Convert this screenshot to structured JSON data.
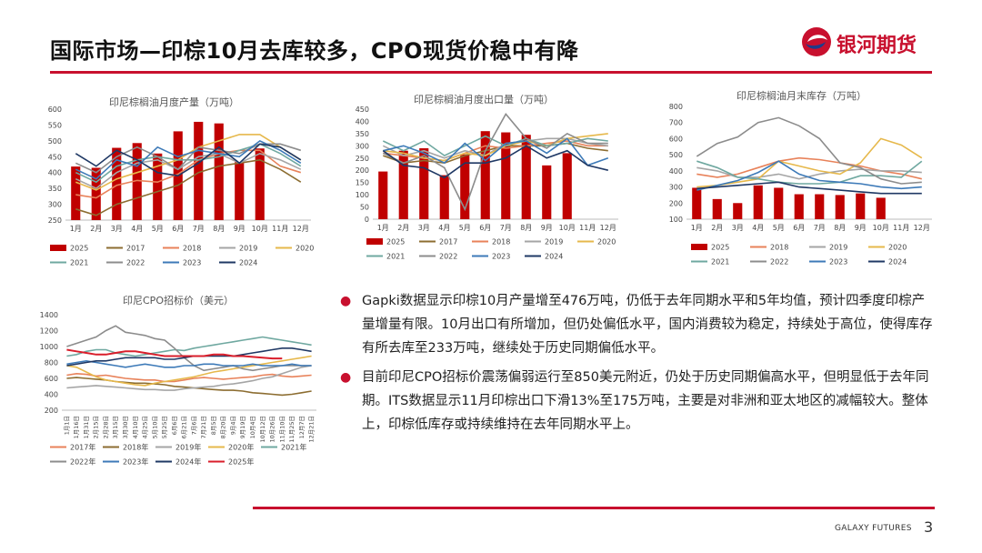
{
  "slide": {
    "title": "国际市场—印棕10月去库较多，CPO现货价稳中有降",
    "logo_text": "银河期货",
    "footer_brand": "GALAXY FUTURES",
    "page_number": "3",
    "colors": {
      "accent": "#c8102e"
    }
  },
  "bullets": [
    "Gapki数据显示印棕10月产量增至476万吨，仍低于去年同期水平和5年均值，预计四季度印棕产量增量有限。10月出口有所增加，但仍处偏低水平，国内消费较为稳定，持续处于高位，使得库存有所去库至233万吨，继续处于历史同期偏低水平。",
    "目前印尼CPO招标价震荡偏弱运行至850美元附近，仍处于历史同期偏高水平，但明显低于去年同期。ITS数据显示11月印棕出口下滑13%至175万吨，主要是对非洲和亚太地区的减幅较大。整体上，印棕低库存或持续维持在去年同期水平上。"
  ],
  "chart_data": [
    {
      "id": "production",
      "type": "bar+line",
      "title": "印尼棕榈油月度产量（万吨）",
      "categories": [
        "1月",
        "2月",
        "3月",
        "4月",
        "5月",
        "6月",
        "7月",
        "8月",
        "9月",
        "10月",
        "11月",
        "12月"
      ],
      "ylim": [
        250,
        600
      ],
      "yticks": [
        250,
        300,
        350,
        400,
        450,
        500,
        550,
        600
      ],
      "bar_series": {
        "name": "2025",
        "color": "#c00000",
        "values": [
          419,
          415,
          478,
          493,
          460,
          530,
          560,
          555,
          433,
          476,
          null,
          null
        ]
      },
      "line_series": [
        {
          "name": "2017",
          "color": "#8c6d31",
          "values": [
            285,
            265,
            300,
            320,
            340,
            360,
            400,
            420,
            430,
            440,
            410,
            370
          ]
        },
        {
          "name": "2018",
          "color": "#e8825a",
          "values": [
            330,
            320,
            360,
            375,
            370,
            395,
            440,
            460,
            470,
            470,
            420,
            400
          ]
        },
        {
          "name": "2019",
          "color": "#a5a5a5",
          "values": [
            380,
            350,
            400,
            430,
            440,
            410,
            450,
            460,
            430,
            460,
            440,
            410
          ]
        },
        {
          "name": "2020",
          "color": "#e6b84b",
          "values": [
            370,
            345,
            380,
            400,
            420,
            440,
            480,
            500,
            520,
            520,
            480,
            440
          ]
        },
        {
          "name": "2021",
          "color": "#6fa8a0",
          "values": [
            400,
            370,
            420,
            440,
            450,
            440,
            440,
            450,
            470,
            490,
            460,
            420
          ]
        },
        {
          "name": "2022",
          "color": "#8c8c8c",
          "values": [
            430,
            400,
            450,
            480,
            450,
            410,
            480,
            470,
            460,
            490,
            490,
            470
          ]
        },
        {
          "name": "2023",
          "color": "#3d7ab8",
          "values": [
            410,
            380,
            440,
            420,
            480,
            450,
            470,
            460,
            450,
            500,
            470,
            430
          ]
        },
        {
          "name": "2024",
          "color": "#1f3864",
          "values": [
            460,
            420,
            470,
            440,
            400,
            390,
            430,
            480,
            430,
            490,
            480,
            440
          ]
        }
      ]
    },
    {
      "id": "exports",
      "type": "bar+line",
      "title": "印尼棕榈油月度出口量（万吨）",
      "categories": [
        "1月",
        "2月",
        "3月",
        "4月",
        "5月",
        "6月",
        "7月",
        "8月",
        "9月",
        "10月",
        "11月",
        "12月"
      ],
      "ylim": [
        0,
        450
      ],
      "yticks": [
        0,
        50,
        100,
        150,
        200,
        250,
        300,
        350,
        400,
        450
      ],
      "bar_series": {
        "name": "2025",
        "color": "#c00000",
        "values": [
          195,
          280,
          290,
          180,
          265,
          360,
          355,
          345,
          220,
          270,
          null,
          null
        ]
      },
      "line_series": [
        {
          "name": "2017",
          "color": "#8c6d31",
          "values": [
            260,
            230,
            240,
            230,
            260,
            280,
            300,
            300,
            300,
            310,
            290,
            280
          ]
        },
        {
          "name": "2018",
          "color": "#e8825a",
          "values": [
            270,
            260,
            250,
            240,
            270,
            300,
            290,
            300,
            310,
            320,
            300,
            300
          ]
        },
        {
          "name": "2019",
          "color": "#a5a5a5",
          "values": [
            300,
            260,
            280,
            250,
            280,
            260,
            310,
            320,
            330,
            330,
            310,
            300
          ]
        },
        {
          "name": "2020",
          "color": "#e6b84b",
          "values": [
            280,
            270,
            250,
            240,
            270,
            260,
            300,
            320,
            300,
            330,
            340,
            350
          ]
        },
        {
          "name": "2021",
          "color": "#6fa8a0",
          "values": [
            320,
            280,
            320,
            260,
            300,
            340,
            300,
            330,
            300,
            310,
            330,
            320
          ]
        },
        {
          "name": "2022",
          "color": "#8c8c8c",
          "values": [
            270,
            230,
            260,
            210,
            40,
            280,
            430,
            330,
            290,
            350,
            310,
            310
          ]
        },
        {
          "name": "2023",
          "color": "#3d7ab8",
          "values": [
            280,
            300,
            270,
            230,
            310,
            240,
            310,
            320,
            270,
            330,
            220,
            250
          ]
        },
        {
          "name": "2024",
          "color": "#1f3864",
          "values": [
            280,
            220,
            210,
            170,
            230,
            230,
            250,
            300,
            250,
            280,
            220,
            200
          ]
        }
      ]
    },
    {
      "id": "stocks",
      "type": "bar+line",
      "title": "印尼棕榈油月末库存（万吨）",
      "categories": [
        "1月",
        "2月",
        "3月",
        "4月",
        "5月",
        "6月",
        "7月",
        "8月",
        "9月",
        "10月",
        "11月",
        "12月"
      ],
      "ylim": [
        100,
        800
      ],
      "yticks": [
        100,
        200,
        300,
        400,
        500,
        600,
        700,
        800
      ],
      "bar_series": {
        "name": "2025",
        "color": "#c00000",
        "values": [
          295,
          225,
          200,
          310,
          295,
          255,
          255,
          250,
          260,
          233,
          null,
          null
        ]
      },
      "line_series": [
        {
          "name": "2018",
          "color": "#e8825a",
          "values": [
            380,
            360,
            380,
            420,
            460,
            480,
            470,
            450,
            430,
            400,
            380,
            350
          ]
        },
        {
          "name": "2019",
          "color": "#a5a5a5",
          "values": [
            420,
            400,
            360,
            360,
            380,
            350,
            380,
            400,
            410,
            400,
            400,
            390
          ]
        },
        {
          "name": "2020",
          "color": "#e6b84b",
          "values": [
            300,
            310,
            330,
            350,
            460,
            430,
            400,
            380,
            450,
            600,
            560,
            480
          ]
        },
        {
          "name": "2021",
          "color": "#6fa8a0",
          "values": [
            460,
            420,
            360,
            350,
            330,
            320,
            320,
            330,
            370,
            370,
            360,
            460
          ]
        },
        {
          "name": "2022",
          "color": "#8c8c8c",
          "values": [
            490,
            570,
            610,
            700,
            730,
            680,
            600,
            450,
            420,
            350,
            320,
            330
          ]
        },
        {
          "name": "2023",
          "color": "#3d7ab8",
          "values": [
            280,
            310,
            340,
            390,
            460,
            380,
            340,
            330,
            320,
            300,
            290,
            300
          ]
        },
        {
          "name": "2024",
          "color": "#1f3864",
          "values": [
            290,
            300,
            310,
            320,
            330,
            300,
            290,
            280,
            270,
            260,
            260,
            260
          ]
        }
      ]
    },
    {
      "id": "cpo_tender",
      "type": "line",
      "title": "印尼CPO招标价（美元）",
      "categories": [
        "1月1日",
        "1月16日",
        "1月31日",
        "2月15日",
        "2月28日",
        "3月15日",
        "3月30日",
        "4月10日",
        "4月25日",
        "5月10日",
        "5月25日",
        "6月6日",
        "6月21日",
        "7月6日",
        "7月21日",
        "8月5日",
        "8月20日",
        "9月4日",
        "9月19日",
        "10月4日",
        "10月12日",
        "10月26日",
        "11月10日",
        "11月25日",
        "12月7日",
        "12月21日"
      ],
      "ylim": [
        200,
        1400
      ],
      "yticks": [
        200,
        400,
        600,
        800,
        1000,
        1200,
        1400
      ],
      "series": [
        {
          "name": "2017年",
          "color": "#e8825a",
          "values": [
            640,
            660,
            650,
            630,
            640,
            620,
            600,
            590,
            580,
            580,
            560,
            560,
            580,
            600,
            610,
            600,
            590,
            600,
            610,
            620,
            640,
            650,
            630,
            620,
            630,
            640
          ]
        },
        {
          "name": "2018年",
          "color": "#8c6d31",
          "values": [
            600,
            610,
            600,
            590,
            580,
            560,
            550,
            540,
            540,
            530,
            520,
            500,
            490,
            480,
            470,
            460,
            450,
            450,
            440,
            420,
            410,
            400,
            390,
            400,
            420,
            440
          ]
        },
        {
          "name": "2019年",
          "color": "#a5a5a5",
          "values": [
            480,
            490,
            500,
            510,
            500,
            490,
            480,
            470,
            460,
            460,
            450,
            450,
            470,
            480,
            490,
            500,
            520,
            530,
            550,
            570,
            600,
            620,
            660,
            700,
            740,
            760
          ]
        },
        {
          "name": "2020年",
          "color": "#e6b84b",
          "values": [
            760,
            740,
            680,
            620,
            580,
            560,
            540,
            520,
            510,
            540,
            560,
            580,
            600,
            620,
            650,
            680,
            700,
            720,
            740,
            760,
            780,
            800,
            820,
            840,
            860,
            880
          ]
        },
        {
          "name": "2021年",
          "color": "#6fa8a0",
          "values": [
            880,
            900,
            940,
            960,
            960,
            920,
            900,
            880,
            900,
            920,
            940,
            960,
            950,
            980,
            1000,
            1020,
            1040,
            1060,
            1080,
            1100,
            1120,
            1100,
            1080,
            1060,
            1040,
            1020
          ]
        },
        {
          "name": "2022年",
          "color": "#8c8c8c",
          "values": [
            1000,
            1040,
            1080,
            1120,
            1200,
            1260,
            1180,
            1160,
            1140,
            1100,
            1080,
            980,
            860,
            760,
            700,
            720,
            740,
            760,
            720,
            700,
            720,
            740,
            760,
            760,
            760,
            760
          ]
        },
        {
          "name": "2023年",
          "color": "#3d7ab8",
          "values": [
            780,
            800,
            820,
            800,
            780,
            760,
            740,
            760,
            780,
            760,
            740,
            740,
            760,
            760,
            780,
            780,
            760,
            760,
            760,
            780,
            760,
            760,
            760,
            780,
            760,
            760
          ]
        },
        {
          "name": "2024年",
          "color": "#1f3864",
          "values": [
            760,
            780,
            800,
            820,
            820,
            840,
            860,
            860,
            860,
            860,
            840,
            840,
            860,
            880,
            880,
            880,
            880,
            880,
            900,
            920,
            940,
            960,
            980,
            980,
            960,
            940
          ]
        },
        {
          "name": "2025年",
          "color": "#d91e2b",
          "values": [
            960,
            940,
            920,
            900,
            900,
            920,
            940,
            940,
            920,
            900,
            880,
            880,
            880,
            880,
            880,
            900,
            900,
            880,
            880,
            870,
            860,
            850,
            850,
            null,
            null,
            null
          ]
        }
      ]
    }
  ]
}
